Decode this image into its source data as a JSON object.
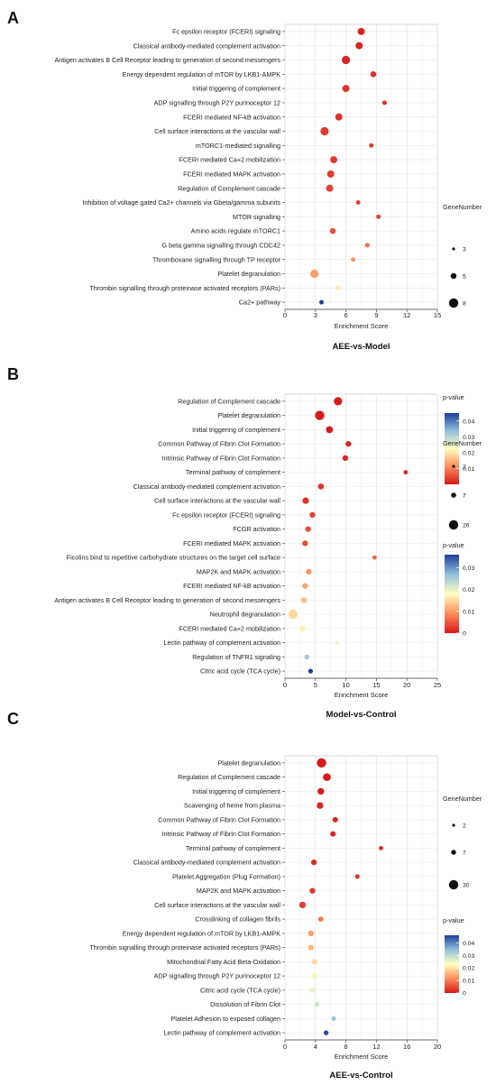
{
  "legend_labels": {
    "gene_number": "GeneNumber",
    "p_value": "p-value"
  },
  "chart_data": [
    {
      "type": "scatter",
      "panel_label": "A",
      "title": "AEE-vs-Model",
      "xlabel": "Enrichment Score",
      "ylabel": "",
      "xlim": [
        0,
        15
      ],
      "xticks": [
        0,
        3,
        6,
        9,
        12,
        15
      ],
      "grid": true,
      "legend_position": "right",
      "size_legend": [
        3,
        5,
        8
      ],
      "color_ticks": [
        "0.04",
        "0.03",
        "0.02",
        "0.01"
      ],
      "color_range": [
        0,
        0.045
      ],
      "points": [
        {
          "term": "Fc epsilon receptor (FCERI) signaling",
          "x": 7.5,
          "genes": 6,
          "p": 0.001
        },
        {
          "term": "Classical antibody-mediated complement activation",
          "x": 7.3,
          "genes": 6,
          "p": 0.001
        },
        {
          "term": "Antigen activates B Cell Receptor leading to generation of second messengers",
          "x": 6.0,
          "genes": 7,
          "p": 0.001
        },
        {
          "term": "Energy dependent regulation of mTOR by LKB1-AMPK",
          "x": 8.7,
          "genes": 5,
          "p": 0.002
        },
        {
          "term": "Initial triggering of complement",
          "x": 6.0,
          "genes": 6,
          "p": 0.002
        },
        {
          "term": "ADP signalling through P2Y purinoceptor 12",
          "x": 9.8,
          "genes": 4,
          "p": 0.002
        },
        {
          "term": "FCERI mediated NF-kB activation",
          "x": 5.3,
          "genes": 6,
          "p": 0.002
        },
        {
          "term": "Cell surface interactions at the vascular wall",
          "x": 3.9,
          "genes": 7,
          "p": 0.003
        },
        {
          "term": "mTORC1-mediated signalling",
          "x": 8.5,
          "genes": 4,
          "p": 0.003
        },
        {
          "term": "FCERI mediated Ca+2 mobilization",
          "x": 4.8,
          "genes": 6,
          "p": 0.003
        },
        {
          "term": "FCERI mediated MAPK activation",
          "x": 4.5,
          "genes": 6,
          "p": 0.003
        },
        {
          "term": "Regulation of Complement cascade",
          "x": 4.4,
          "genes": 6,
          "p": 0.004
        },
        {
          "term": "Inhibition  of voltage gated Ca2+ channels via Gbeta/gamma subunits",
          "x": 7.2,
          "genes": 4,
          "p": 0.004
        },
        {
          "term": "MTOR signalling",
          "x": 9.2,
          "genes": 4,
          "p": 0.004
        },
        {
          "term": "Amino acids regulate mTORC1",
          "x": 4.7,
          "genes": 5,
          "p": 0.005
        },
        {
          "term": "G beta:gamma signalling through CDC42",
          "x": 8.1,
          "genes": 4,
          "p": 0.008
        },
        {
          "term": "Thromboxane signalling through TP receptor",
          "x": 6.7,
          "genes": 4,
          "p": 0.012
        },
        {
          "term": "Platelet degranulation",
          "x": 2.9,
          "genes": 7,
          "p": 0.013
        },
        {
          "term": "Thrombin signalling through proteinase activated receptors (PARs)",
          "x": 5.2,
          "genes": 4,
          "p": 0.02
        },
        {
          "term": "Ca2+ pathway",
          "x": 3.6,
          "genes": 4,
          "p": 0.045
        }
      ]
    },
    {
      "type": "scatter",
      "panel_label": "B",
      "title": "Model-vs-Control",
      "xlabel": "Enrichment Score",
      "ylabel": "",
      "xlim": [
        0,
        25
      ],
      "xticks": [
        0,
        5,
        10,
        15,
        20,
        25
      ],
      "grid": true,
      "legend_position": "right",
      "size_legend": [
        2,
        7,
        26
      ],
      "color_ticks": [
        "0.03",
        "0.02",
        "0.01",
        "0"
      ],
      "color_range": [
        0,
        0.036
      ],
      "points": [
        {
          "term": "Regulation of Complement cascade",
          "x": 8.7,
          "genes": 20,
          "p": 0.0
        },
        {
          "term": "Platelet degranulation",
          "x": 5.7,
          "genes": 26,
          "p": 0.0
        },
        {
          "term": "Initial triggering of complement",
          "x": 7.3,
          "genes": 14,
          "p": 0.0
        },
        {
          "term": "Common Pathway of Fibrin Clot Formation",
          "x": 10.4,
          "genes": 9,
          "p": 0.001
        },
        {
          "term": "Intrinsic Pathway of Fibrin Clot Formation",
          "x": 9.9,
          "genes": 9,
          "p": 0.001
        },
        {
          "term": "Terminal pathway of complement",
          "x": 19.8,
          "genes": 5,
          "p": 0.001
        },
        {
          "term": "Classical antibody-mediated complement activation",
          "x": 5.9,
          "genes": 10,
          "p": 0.002
        },
        {
          "term": "Cell surface interactions at the vascular wall",
          "x": 3.4,
          "genes": 12,
          "p": 0.002
        },
        {
          "term": "Fc epsilon receptor (FCERI) signaling",
          "x": 4.5,
          "genes": 9,
          "p": 0.003
        },
        {
          "term": "FCGR activation",
          "x": 3.8,
          "genes": 9,
          "p": 0.004
        },
        {
          "term": "FCERI mediated MAPK activation",
          "x": 3.3,
          "genes": 9,
          "p": 0.004
        },
        {
          "term": "Ficolins bind to repetitive carbohydrate structures on the target cell surface",
          "x": 14.7,
          "genes": 5,
          "p": 0.006
        },
        {
          "term": "MAP2K and MAPK activation",
          "x": 3.9,
          "genes": 8,
          "p": 0.009
        },
        {
          "term": "FCERI mediated NF-kB activation",
          "x": 3.3,
          "genes": 9,
          "p": 0.011
        },
        {
          "term": "Antigen activates B Cell Receptor leading to generation of second messengers",
          "x": 3.1,
          "genes": 10,
          "p": 0.013
        },
        {
          "term": "Neutrophil degranulation",
          "x": 1.3,
          "genes": 26,
          "p": 0.015
        },
        {
          "term": "FCERI mediated Ca+2 mobilization",
          "x": 2.9,
          "genes": 10,
          "p": 0.017
        },
        {
          "term": "Lectin pathway of complement activation",
          "x": 8.5,
          "genes": 4,
          "p": 0.02
        },
        {
          "term": "Regulation of TNFR1 signaling",
          "x": 3.6,
          "genes": 7,
          "p": 0.025
        },
        {
          "term": "Citric acid cycle (TCA cycle)",
          "x": 4.2,
          "genes": 6,
          "p": 0.036
        }
      ]
    },
    {
      "type": "scatter",
      "panel_label": "C",
      "title": "AEE-vs-Control",
      "xlabel": "Enrichment Score",
      "ylabel": "",
      "xlim": [
        0,
        20
      ],
      "xticks": [
        0,
        4,
        8,
        12,
        16,
        20
      ],
      "grid": true,
      "legend_position": "right",
      "size_legend": [
        2,
        7,
        30
      ],
      "color_ticks": [
        "0.04",
        "0.03",
        "0.02",
        "0.01",
        "0"
      ],
      "color_range": [
        0,
        0.046
      ],
      "points": [
        {
          "term": "Platelet degranulation",
          "x": 4.8,
          "genes": 30,
          "p": 0.0
        },
        {
          "term": "Regulation of Complement cascade",
          "x": 5.5,
          "genes": 20,
          "p": 0.0
        },
        {
          "term": "Initial triggering of complement",
          "x": 4.7,
          "genes": 14,
          "p": 0.0
        },
        {
          "term": "Scavenging of heme from plasma",
          "x": 4.6,
          "genes": 14,
          "p": 0.001
        },
        {
          "term": "Common Pathway of Fibrin Clot Formation",
          "x": 6.6,
          "genes": 9,
          "p": 0.001
        },
        {
          "term": "Intrinsic Pathway of Fibrin Clot Formation",
          "x": 6.3,
          "genes": 9,
          "p": 0.001
        },
        {
          "term": "Terminal pathway of complement",
          "x": 12.6,
          "genes": 5,
          "p": 0.001
        },
        {
          "term": "Classical antibody-mediated complement activation",
          "x": 3.8,
          "genes": 10,
          "p": 0.002
        },
        {
          "term": "Platelet Aggregation (Plug Formation)",
          "x": 9.5,
          "genes": 6,
          "p": 0.002
        },
        {
          "term": "MAP2K and MAPK activation",
          "x": 3.6,
          "genes": 10,
          "p": 0.003
        },
        {
          "term": "Cell surface interactions at the vascular wall",
          "x": 2.3,
          "genes": 14,
          "p": 0.004
        },
        {
          "term": "Crosslinking of collagen fibrils",
          "x": 4.7,
          "genes": 8,
          "p": 0.009
        },
        {
          "term": "Energy dependent regulation of mTOR by LKB1-AMPK",
          "x": 3.4,
          "genes": 10,
          "p": 0.013
        },
        {
          "term": "Thrombin signalling through proteinase activated receptors (PARs)",
          "x": 3.4,
          "genes": 10,
          "p": 0.016
        },
        {
          "term": "Mitochondrial Fatty Acid Beta-Oxidation",
          "x": 3.9,
          "genes": 10,
          "p": 0.019
        },
        {
          "term": "ADP signalling through P2Y purinoceptor 12",
          "x": 3.9,
          "genes": 9,
          "p": 0.022
        },
        {
          "term": "Citric acid cycle (TCA cycle)",
          "x": 3.6,
          "genes": 9,
          "p": 0.025
        },
        {
          "term": "Dissolution of Fibrin Clot",
          "x": 4.2,
          "genes": 7,
          "p": 0.028
        },
        {
          "term": "Platelet Adhesion to exposed collagen",
          "x": 6.4,
          "genes": 7,
          "p": 0.033
        },
        {
          "term": "Lectin pathway of complement activation",
          "x": 5.4,
          "genes": 7,
          "p": 0.045
        }
      ]
    }
  ]
}
